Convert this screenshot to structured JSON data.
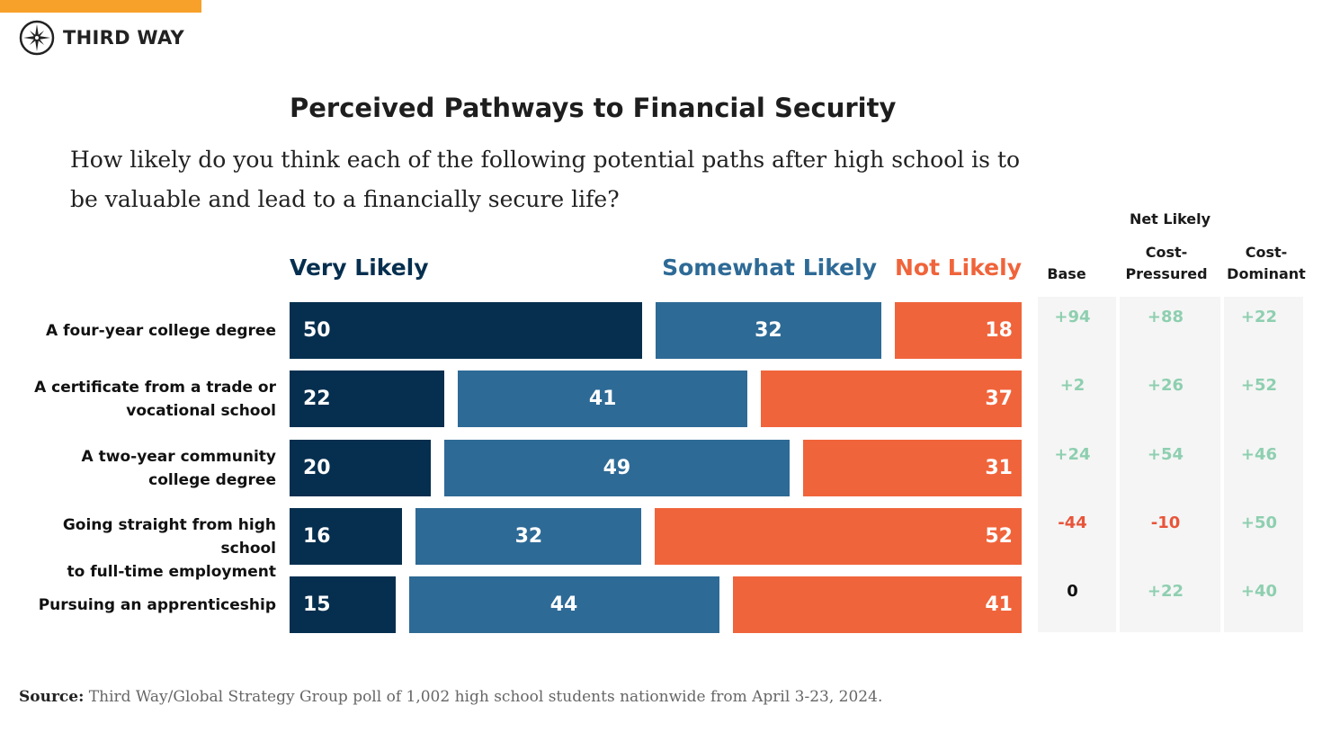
{
  "brand": {
    "name": "THIRD WAY",
    "accent": "#f7a12a"
  },
  "chart_data": {
    "type": "bar",
    "stacked": true,
    "orientation": "horizontal",
    "title": "Perceived Pathways to Financial Security",
    "subtitle": "How likely do you think each of the following potential paths after high school is to be valuable and lead to a financially secure life?",
    "categories": [
      "A four-year college degree",
      "A certificate from a trade or vocational school",
      "A two-year community college degree",
      "Going straight from high school to full-time employment",
      "Pursuing an apprenticeship"
    ],
    "series": [
      {
        "name": "Very Likely",
        "color": "#062f4f",
        "values": [
          50,
          22,
          20,
          16,
          15
        ]
      },
      {
        "name": "Somewhat Likely",
        "color": "#2e6a96",
        "values": [
          32,
          41,
          49,
          32,
          44
        ]
      },
      {
        "name": "Not Likely",
        "color": "#f0643b",
        "values": [
          18,
          37,
          31,
          52,
          41
        ]
      }
    ],
    "net_table": {
      "title": "Net Likely",
      "columns": [
        "Base",
        "Cost-Pressured",
        "Cost-Dominant"
      ],
      "rows": [
        [
          "+94",
          "+88",
          "+22"
        ],
        [
          "+2",
          "+26",
          "+52"
        ],
        [
          "+24",
          "+54",
          "+46"
        ],
        [
          "-44",
          "-10",
          "+50"
        ],
        [
          "0",
          "+22",
          "+40"
        ]
      ],
      "colors": {
        "positive": "#8ecfb0",
        "negative": "#e8553a",
        "zero": "#111111"
      }
    }
  },
  "source": {
    "label": "Source:",
    "text": "Third Way/Global Strategy Group poll of 1,002 high school students nationwide from April 3-23, 2024."
  }
}
